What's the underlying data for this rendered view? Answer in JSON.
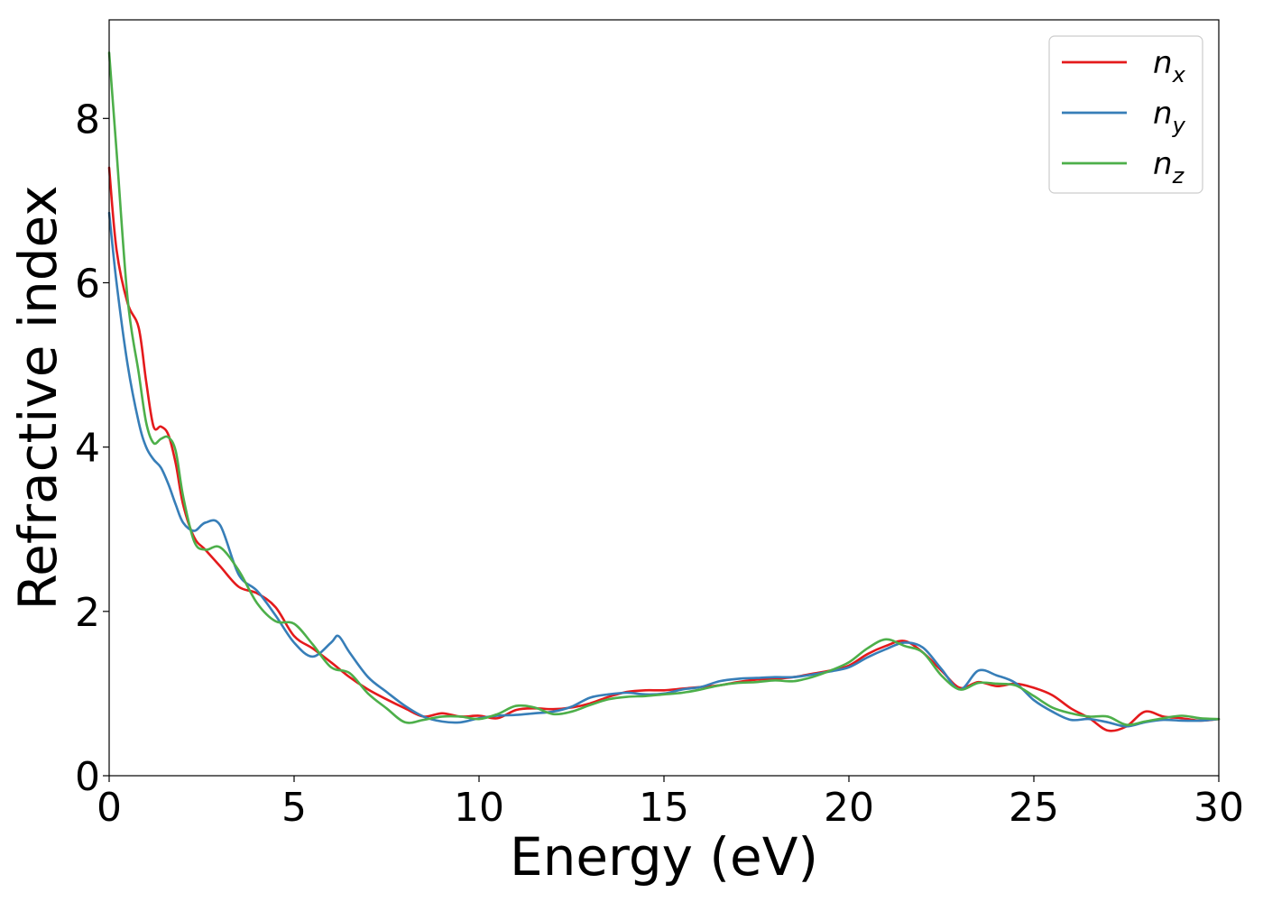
{
  "chart_data": {
    "type": "line",
    "title": "",
    "xlabel": "Energy (eV)",
    "ylabel": "Refractive index",
    "xlim": [
      0,
      30
    ],
    "ylim": [
      0,
      9.2
    ],
    "xticks": [
      0,
      5,
      10,
      15,
      20,
      25,
      30
    ],
    "yticks": [
      0,
      2,
      4,
      6,
      8
    ],
    "grid": false,
    "legend_position": "top-right",
    "series": [
      {
        "name": "n",
        "subscript": "x",
        "color": "#e41a1c",
        "x": [
          0,
          0.2,
          0.5,
          0.8,
          1.0,
          1.2,
          1.4,
          1.6,
          1.8,
          2.0,
          2.3,
          2.6,
          3.0,
          3.5,
          4.0,
          4.5,
          5.0,
          5.5,
          6.0,
          6.5,
          7.0,
          7.5,
          8.0,
          8.5,
          9.0,
          9.5,
          10.0,
          10.5,
          11.0,
          11.5,
          12.0,
          12.5,
          13.0,
          13.5,
          14.0,
          14.5,
          15.0,
          15.5,
          16.0,
          16.5,
          17.0,
          17.5,
          18.0,
          18.5,
          19.0,
          19.5,
          20.0,
          20.5,
          21.0,
          21.5,
          22.0,
          22.5,
          23.0,
          23.5,
          24.0,
          24.5,
          25.0,
          25.5,
          26.0,
          26.5,
          27.0,
          27.5,
          28.0,
          28.5,
          29.0,
          29.5,
          30.0
        ],
        "y": [
          7.4,
          6.4,
          5.75,
          5.45,
          4.8,
          4.25,
          4.25,
          4.15,
          3.8,
          3.3,
          2.9,
          2.75,
          2.55,
          2.3,
          2.22,
          2.05,
          1.7,
          1.55,
          1.38,
          1.2,
          1.05,
          0.93,
          0.82,
          0.72,
          0.76,
          0.72,
          0.73,
          0.7,
          0.8,
          0.82,
          0.81,
          0.83,
          0.88,
          0.96,
          1.02,
          1.04,
          1.04,
          1.06,
          1.08,
          1.1,
          1.14,
          1.17,
          1.18,
          1.2,
          1.24,
          1.28,
          1.34,
          1.48,
          1.58,
          1.64,
          1.5,
          1.28,
          1.07,
          1.14,
          1.09,
          1.12,
          1.07,
          0.98,
          0.82,
          0.7,
          0.55,
          0.6,
          0.78,
          0.72,
          0.7,
          0.67,
          0.69
        ]
      },
      {
        "name": "n",
        "subscript": "y",
        "color": "#377eb8",
        "x": [
          0,
          0.2,
          0.5,
          0.8,
          1.0,
          1.2,
          1.4,
          1.6,
          1.8,
          2.0,
          2.3,
          2.6,
          3.0,
          3.5,
          4.0,
          4.5,
          5.0,
          5.5,
          6.0,
          6.2,
          6.5,
          7.0,
          7.5,
          8.0,
          8.5,
          9.0,
          9.5,
          10.0,
          10.5,
          11.0,
          11.5,
          12.0,
          12.5,
          13.0,
          13.5,
          14.0,
          14.5,
          15.0,
          15.5,
          16.0,
          16.5,
          17.0,
          17.5,
          18.0,
          18.5,
          19.0,
          19.5,
          20.0,
          20.5,
          21.0,
          21.5,
          22.0,
          22.5,
          23.0,
          23.5,
          24.0,
          24.5,
          25.0,
          25.5,
          26.0,
          26.5,
          27.0,
          27.5,
          28.0,
          28.5,
          29.0,
          29.5,
          30.0
        ],
        "y": [
          6.85,
          6.0,
          5.0,
          4.3,
          4.0,
          3.85,
          3.75,
          3.55,
          3.3,
          3.08,
          2.98,
          3.08,
          3.05,
          2.45,
          2.25,
          1.95,
          1.62,
          1.45,
          1.62,
          1.7,
          1.5,
          1.2,
          1.02,
          0.85,
          0.72,
          0.66,
          0.65,
          0.7,
          0.73,
          0.74,
          0.76,
          0.78,
          0.84,
          0.95,
          0.99,
          1.01,
          0.99,
          1.0,
          1.05,
          1.08,
          1.15,
          1.18,
          1.19,
          1.2,
          1.2,
          1.23,
          1.27,
          1.32,
          1.44,
          1.54,
          1.62,
          1.56,
          1.3,
          1.05,
          1.28,
          1.22,
          1.13,
          0.92,
          0.78,
          0.68,
          0.69,
          0.65,
          0.6,
          0.65,
          0.68,
          0.67,
          0.67,
          0.69
        ]
      },
      {
        "name": "n",
        "subscript": "z",
        "color": "#4daf4a",
        "x": [
          0,
          0.2,
          0.5,
          0.8,
          1.0,
          1.2,
          1.4,
          1.6,
          1.8,
          2.0,
          2.3,
          2.6,
          3.0,
          3.5,
          4.0,
          4.5,
          5.0,
          5.5,
          6.0,
          6.5,
          7.0,
          7.5,
          8.0,
          8.5,
          9.0,
          9.5,
          10.0,
          10.5,
          11.0,
          11.5,
          12.0,
          12.5,
          13.0,
          13.5,
          14.0,
          14.5,
          15.0,
          15.5,
          16.0,
          16.5,
          17.0,
          17.5,
          18.0,
          18.5,
          19.0,
          19.5,
          20.0,
          20.5,
          21.0,
          21.5,
          22.0,
          22.5,
          23.0,
          23.5,
          24.0,
          24.5,
          25.0,
          25.5,
          26.0,
          26.5,
          27.0,
          27.5,
          28.0,
          28.5,
          29.0,
          29.5,
          30.0
        ],
        "y": [
          8.8,
          7.6,
          5.8,
          4.9,
          4.3,
          4.05,
          4.1,
          4.12,
          3.95,
          3.4,
          2.85,
          2.75,
          2.78,
          2.5,
          2.1,
          1.88,
          1.85,
          1.6,
          1.32,
          1.25,
          1.0,
          0.82,
          0.65,
          0.68,
          0.72,
          0.72,
          0.69,
          0.75,
          0.85,
          0.83,
          0.75,
          0.78,
          0.86,
          0.93,
          0.96,
          0.97,
          0.99,
          1.01,
          1.05,
          1.1,
          1.13,
          1.14,
          1.16,
          1.15,
          1.2,
          1.28,
          1.38,
          1.55,
          1.66,
          1.58,
          1.5,
          1.22,
          1.05,
          1.13,
          1.12,
          1.1,
          0.97,
          0.83,
          0.76,
          0.72,
          0.72,
          0.62,
          0.66,
          0.7,
          0.73,
          0.7,
          0.69
        ]
      }
    ]
  }
}
